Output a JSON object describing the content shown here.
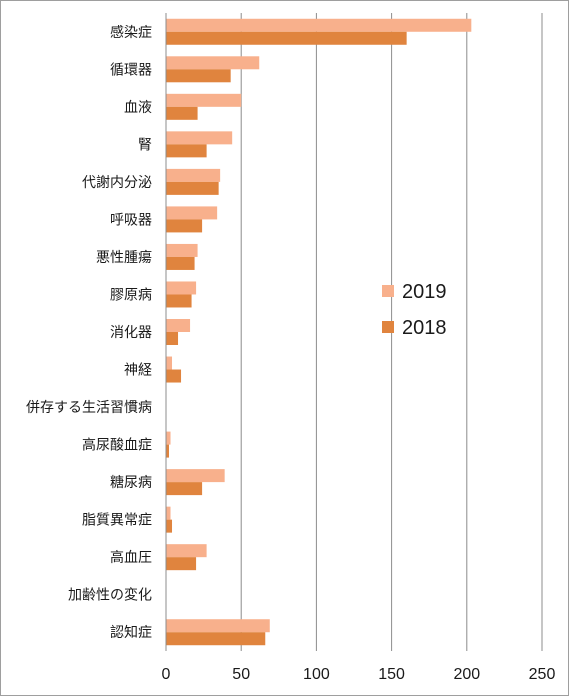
{
  "chart_data": {
    "type": "bar",
    "orientation": "horizontal",
    "categories": [
      "感染症",
      "循環器",
      "血液",
      "腎",
      "代謝内分泌",
      "呼吸器",
      "悪性腫瘍",
      "膠原病",
      "消化器",
      "神経",
      "併存する生活習慣病",
      "高尿酸血症",
      "糖尿病",
      "脂質異常症",
      "高血圧",
      "加齢性の変化",
      "認知症"
    ],
    "series": [
      {
        "name": "2019",
        "color": "#f8b08c",
        "values": [
          203,
          62,
          50,
          44,
          36,
          34,
          21,
          20,
          16,
          4,
          0,
          3,
          39,
          3,
          27,
          0,
          69
        ]
      },
      {
        "name": "2018",
        "color": "#e0843e",
        "values": [
          160,
          43,
          21,
          27,
          35,
          24,
          19,
          17,
          8,
          10,
          0,
          2,
          24,
          4,
          20,
          0,
          66
        ]
      }
    ],
    "xlim": [
      0,
      250
    ],
    "xticks": [
      0,
      50,
      100,
      150,
      200,
      250
    ],
    "grid": "vertical",
    "legend": "right"
  }
}
